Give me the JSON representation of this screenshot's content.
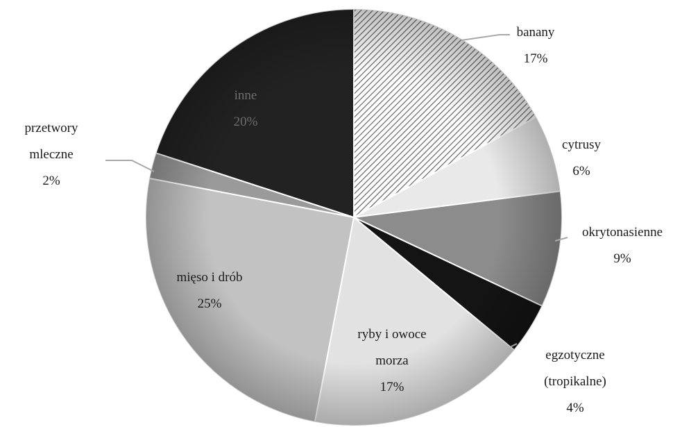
{
  "chart_data": {
    "type": "pie",
    "title": "",
    "legend": "none",
    "slices": [
      {
        "name": "banany",
        "lines": [
          "banany"
        ],
        "value": 17,
        "value_label": "17%",
        "fill": "url(#hatch)"
      },
      {
        "name": "cytrusy",
        "lines": [
          "cytrusy"
        ],
        "value": 6,
        "value_label": "6%",
        "fill": "#e9e9e9"
      },
      {
        "name": "okrytonasienne",
        "lines": [
          "okrytonasienne"
        ],
        "value": 9,
        "value_label": "9%",
        "fill": "#8c8c8c"
      },
      {
        "name": "egzotyczne (tropikalne)",
        "lines": [
          "egzotyczne",
          "(tropikalne)"
        ],
        "value": 4,
        "value_label": "4%",
        "fill": "#141414"
      },
      {
        "name": "ryby i owoce morza",
        "lines": [
          "ryby i owoce",
          "morza"
        ],
        "value": 17,
        "value_label": "17%",
        "fill": "#e2e2e2"
      },
      {
        "name": "mięso i drób",
        "lines": [
          "mięso i drób"
        ],
        "value": 25,
        "value_label": "25%",
        "fill": "#c2c2c2"
      },
      {
        "name": "przetwory mleczne",
        "lines": [
          "przetwory",
          "mleczne"
        ],
        "value": 2,
        "value_label": "2%",
        "fill": "#9a9a9a"
      },
      {
        "name": "inne",
        "lines": [
          "inne"
        ],
        "value": 20,
        "value_label": "20%",
        "fill": "#222222"
      }
    ]
  }
}
